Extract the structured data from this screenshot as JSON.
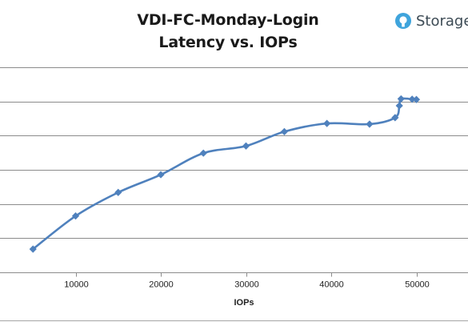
{
  "logo": {
    "text": "Storage",
    "icon": "storage-logo-icon",
    "icon_color": "#3fa4dc",
    "text_color": "#3d4b55"
  },
  "chart_data": {
    "type": "line",
    "title_line1": "VDI-FC-Monday-Login",
    "title_line2": "Latency vs. IOPs",
    "xlabel": "IOPs",
    "ylabel": "",
    "xlim": [
      0,
      60000
    ],
    "xticks": [
      10000,
      20000,
      30000,
      40000,
      50000
    ],
    "ylim": [
      0,
      6
    ],
    "gridlines_y": [
      1,
      2,
      3,
      4,
      5,
      6
    ],
    "grid": "horizontal",
    "line_color": "#4f81bd",
    "marker": "diamond",
    "series": [
      {
        "x": [
          5000,
          10000,
          15000,
          20000,
          25000,
          30000,
          34500,
          39500,
          44500,
          47500,
          48000,
          48200,
          49500,
          50000
        ],
        "y": [
          0.68,
          1.65,
          2.34,
          2.86,
          3.49,
          3.7,
          4.12,
          4.36,
          4.34,
          4.53,
          4.88,
          5.08,
          5.07,
          5.06
        ]
      }
    ]
  }
}
